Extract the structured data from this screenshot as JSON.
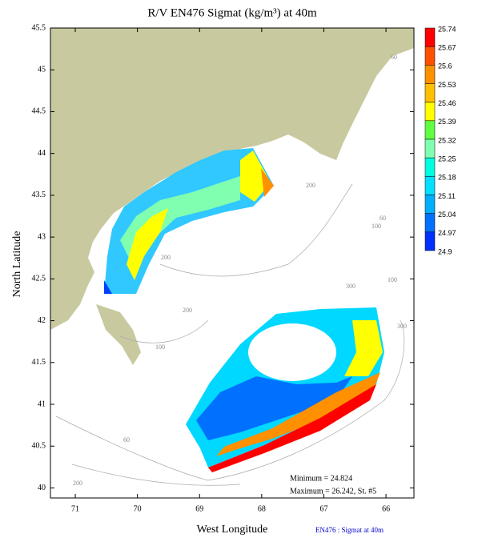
{
  "map": {
    "title": "R/V EN476 Sigmat (kg/m³) at 40m",
    "x_label": "West Longitude",
    "y_label": "North Latitude",
    "xlim": [
      71.4,
      65.55
    ],
    "ylim": [
      39.88,
      45.5
    ],
    "xticks": [
      71,
      70,
      69,
      68,
      67,
      66
    ],
    "yticks": [
      45.5,
      45,
      44.5,
      44,
      43.5,
      43,
      42.5,
      42,
      41.5,
      41,
      40.5,
      40
    ],
    "colorbar": {
      "levels": [
        25.74,
        25.67,
        25.6,
        25.53,
        25.46,
        25.39,
        25.32,
        25.25,
        25.18,
        25.11,
        25.04,
        24.97,
        24.9
      ],
      "colors": [
        "#ff0000",
        "#ff5000",
        "#ff9000",
        "#ffc000",
        "#ffff00",
        "#60ff40",
        "#80ffb0",
        "#00ffe0",
        "#00e0ff",
        "#00b0ff",
        "#0070ff",
        "#0030ff"
      ]
    },
    "contour_labels": [
      "60",
      "60",
      "100",
      "200",
      "200",
      "100",
      "300",
      "200",
      "100",
      "300",
      "60",
      "200"
    ],
    "minimum": "Minimum = 24.824",
    "maximum": "Maximum = 26.242, St. #5",
    "caption": "EN476 : Sigmat at 40m"
  }
}
